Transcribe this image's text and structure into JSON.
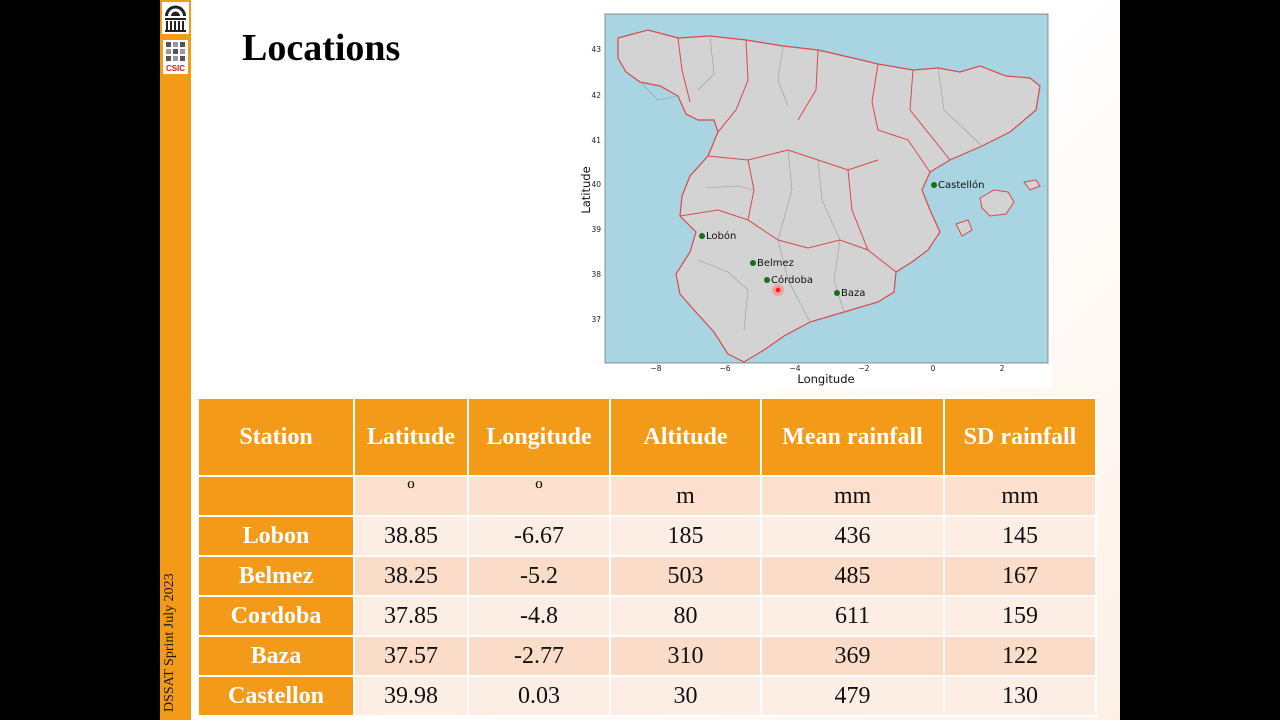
{
  "slide": {
    "title": "Locations",
    "sidebar_text": "DSSAT Sprint July 2023",
    "logo_label": "CSIC"
  },
  "map": {
    "xlabel": "Longitude",
    "ylabel": "Latitude",
    "xticks": [
      "−8",
      "−6",
      "−4",
      "−2",
      "0",
      "2"
    ],
    "yticks": [
      "43",
      "42",
      "41",
      "40",
      "39",
      "38",
      "37"
    ],
    "stations": [
      {
        "name": "Castellón",
        "lon": 0.03,
        "lat": 39.98
      },
      {
        "name": "Lobón",
        "lon": -6.67,
        "lat": 38.85
      },
      {
        "name": "Belmez",
        "lon": -5.2,
        "lat": 38.25
      },
      {
        "name": "Córdoba",
        "lon": -4.8,
        "lat": 37.85
      },
      {
        "name": "Baza",
        "lon": -2.77,
        "lat": 37.57
      }
    ],
    "colors": {
      "sea": "#a9d4e2",
      "land": "#d3d3d3",
      "border": "#d9484e",
      "station": "#1d6b1d",
      "marker": "#ff3333"
    }
  },
  "table": {
    "headers": [
      "Station",
      "Latitude",
      "Longitude",
      "Altitude",
      "Mean rainfall",
      "SD rainfall"
    ],
    "units": [
      "",
      "º",
      "º",
      "m",
      "mm",
      "mm"
    ],
    "rows": [
      {
        "station": "Lobon",
        "latitude": "38.85",
        "longitude": "-6.67",
        "altitude": "185",
        "mean_rainfall": "436",
        "sd_rainfall": "145"
      },
      {
        "station": "Belmez",
        "latitude": "38.25",
        "longitude": "-5.2",
        "altitude": "503",
        "mean_rainfall": "485",
        "sd_rainfall": "167"
      },
      {
        "station": "Cordoba",
        "latitude": "37.85",
        "longitude": "-4.8",
        "altitude": "80",
        "mean_rainfall": "611",
        "sd_rainfall": "159"
      },
      {
        "station": "Baza",
        "latitude": "37.57",
        "longitude": "-2.77",
        "altitude": "310",
        "mean_rainfall": "369",
        "sd_rainfall": "122"
      },
      {
        "station": "Castellon",
        "latitude": "39.98",
        "longitude": "0.03",
        "altitude": "30",
        "mean_rainfall": "479",
        "sd_rainfall": "130"
      }
    ]
  }
}
